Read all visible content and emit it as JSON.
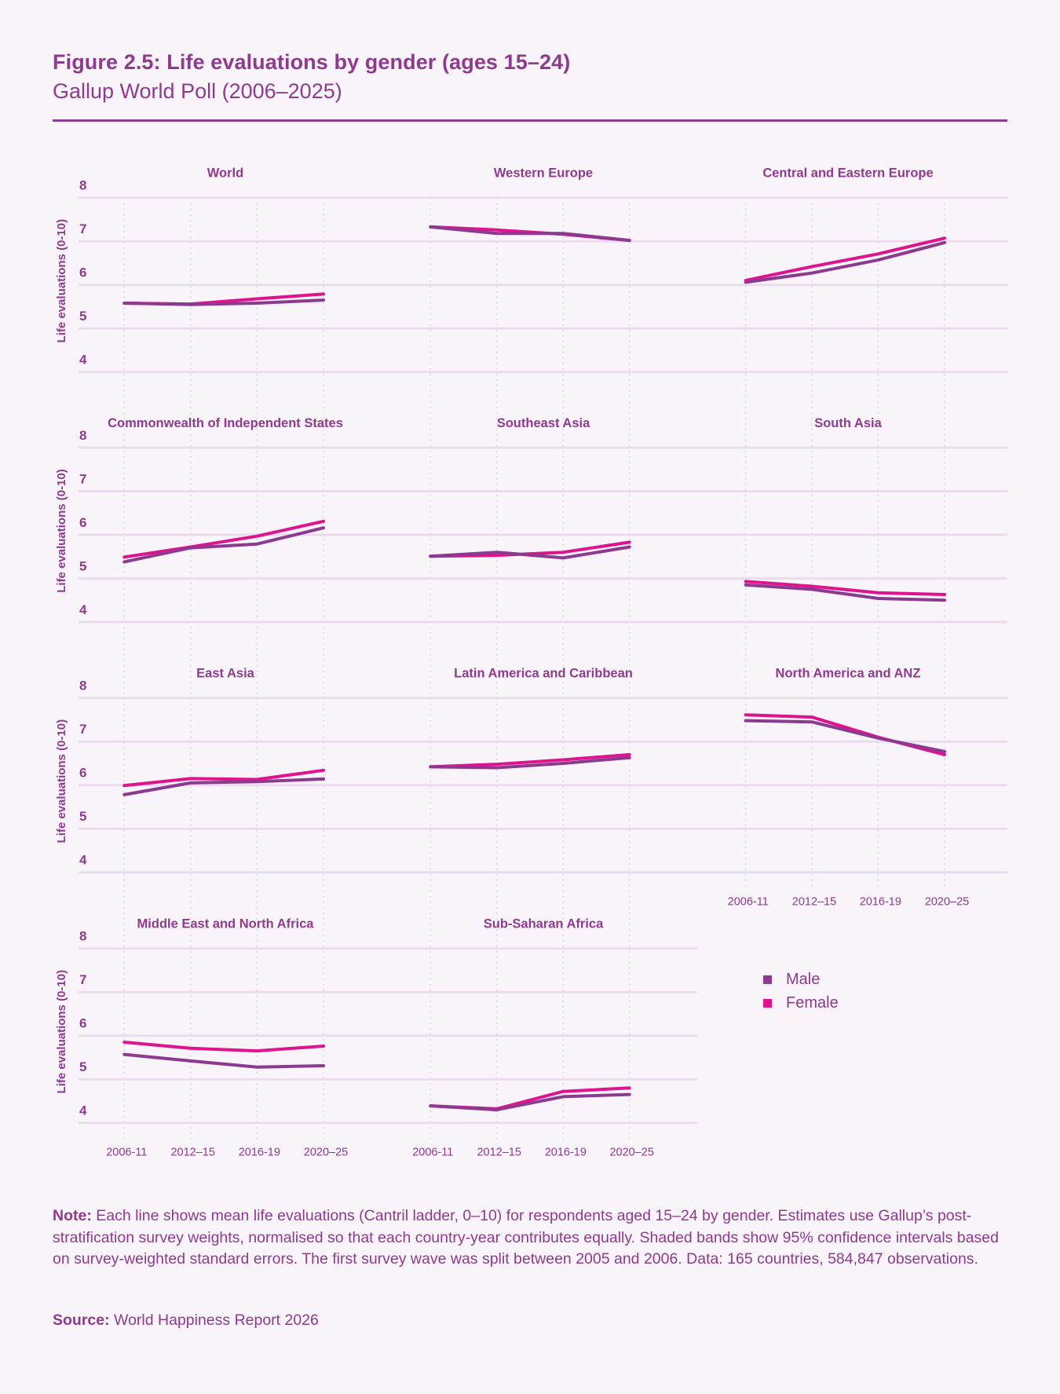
{
  "header": {
    "title": "Figure 2.5: Life evaluations by gender (ages 15–24)",
    "subtitle": "Gallup World Poll (2006–2025)"
  },
  "colors": {
    "male": "#8b3a8f",
    "female": "#e0138e",
    "text": "#8e3a8e",
    "gridline": "#eadcec",
    "background": "#f8f4fa"
  },
  "legend": {
    "items": [
      {
        "label": "Male",
        "series": "male"
      },
      {
        "label": "Female",
        "series": "female"
      }
    ]
  },
  "note": {
    "label": "Note:",
    "text": " Each line shows mean life evaluations (Cantril ladder, 0–10) for respondents aged 15–24 by gender. Estimates use Gallup’s post-stratification survey weights, normalised so that each country-year contributes equally. Shaded bands show 95% confidence intervals based on survey-weighted standard errors. The first survey wave was split between 2005 and 2006. Data: 165 countries, 584,847 observations."
  },
  "source": {
    "label": "Source:",
    "text": " World Happiness Report 2026"
  },
  "chart_data": {
    "type": "line",
    "layout": "small-multiples",
    "title": "Figure 2.5: Life evaluations by gender (ages 15–24)",
    "subtitle": "Gallup World Poll (2006–2025)",
    "x": [
      "2006-11",
      "2012–15",
      "2016-19",
      "2020–25"
    ],
    "ylabel": "Life evaluations (0-10)",
    "yticks": [
      8,
      7,
      6,
      5,
      4
    ],
    "ylim": [
      4,
      8
    ],
    "grid": true,
    "legend_position": "bottom-right",
    "series_names": [
      "Male",
      "Female"
    ],
    "panels": [
      {
        "title": "World",
        "male": [
          5.58,
          5.55,
          5.58,
          5.65
        ],
        "female": [
          5.58,
          5.56,
          5.68,
          5.79
        ]
      },
      {
        "title": "Western Europe",
        "male": [
          7.33,
          7.18,
          7.18,
          7.02
        ],
        "female": [
          7.33,
          7.26,
          7.16,
          7.02
        ]
      },
      {
        "title": "Central and Eastern Europe",
        "male": [
          6.06,
          6.27,
          6.57,
          6.97
        ],
        "female": [
          6.1,
          6.42,
          6.71,
          7.07
        ]
      },
      {
        "title": "Commonwealth of Independent States",
        "male": [
          5.38,
          5.7,
          5.79,
          6.16
        ],
        "female": [
          5.49,
          5.72,
          5.97,
          6.31
        ]
      },
      {
        "title": "Southeast Asia",
        "male": [
          5.51,
          5.6,
          5.47,
          5.72
        ],
        "female": [
          5.51,
          5.53,
          5.6,
          5.83
        ]
      },
      {
        "title": "South Asia",
        "male": [
          4.85,
          4.75,
          4.54,
          4.5
        ],
        "female": [
          4.93,
          4.82,
          4.67,
          4.63
        ]
      },
      {
        "title": "East Asia",
        "male": [
          5.78,
          6.05,
          6.08,
          6.14
        ],
        "female": [
          5.99,
          6.15,
          6.13,
          6.34
        ]
      },
      {
        "title": "Latin America and Caribbean",
        "male": [
          6.42,
          6.4,
          6.5,
          6.63
        ],
        "female": [
          6.42,
          6.48,
          6.58,
          6.7
        ]
      },
      {
        "title": "North America and ANZ",
        "male": [
          7.48,
          7.45,
          7.08,
          6.77
        ],
        "female": [
          7.61,
          7.56,
          7.1,
          6.7
        ]
      },
      {
        "title": "Middle East and North Africa",
        "male": [
          5.57,
          5.42,
          5.28,
          5.31
        ],
        "female": [
          5.85,
          5.71,
          5.65,
          5.76
        ]
      },
      {
        "title": "Sub-Saharan Africa",
        "male": [
          4.39,
          4.3,
          4.6,
          4.65
        ],
        "female": [
          4.39,
          4.32,
          4.72,
          4.8
        ]
      }
    ]
  }
}
